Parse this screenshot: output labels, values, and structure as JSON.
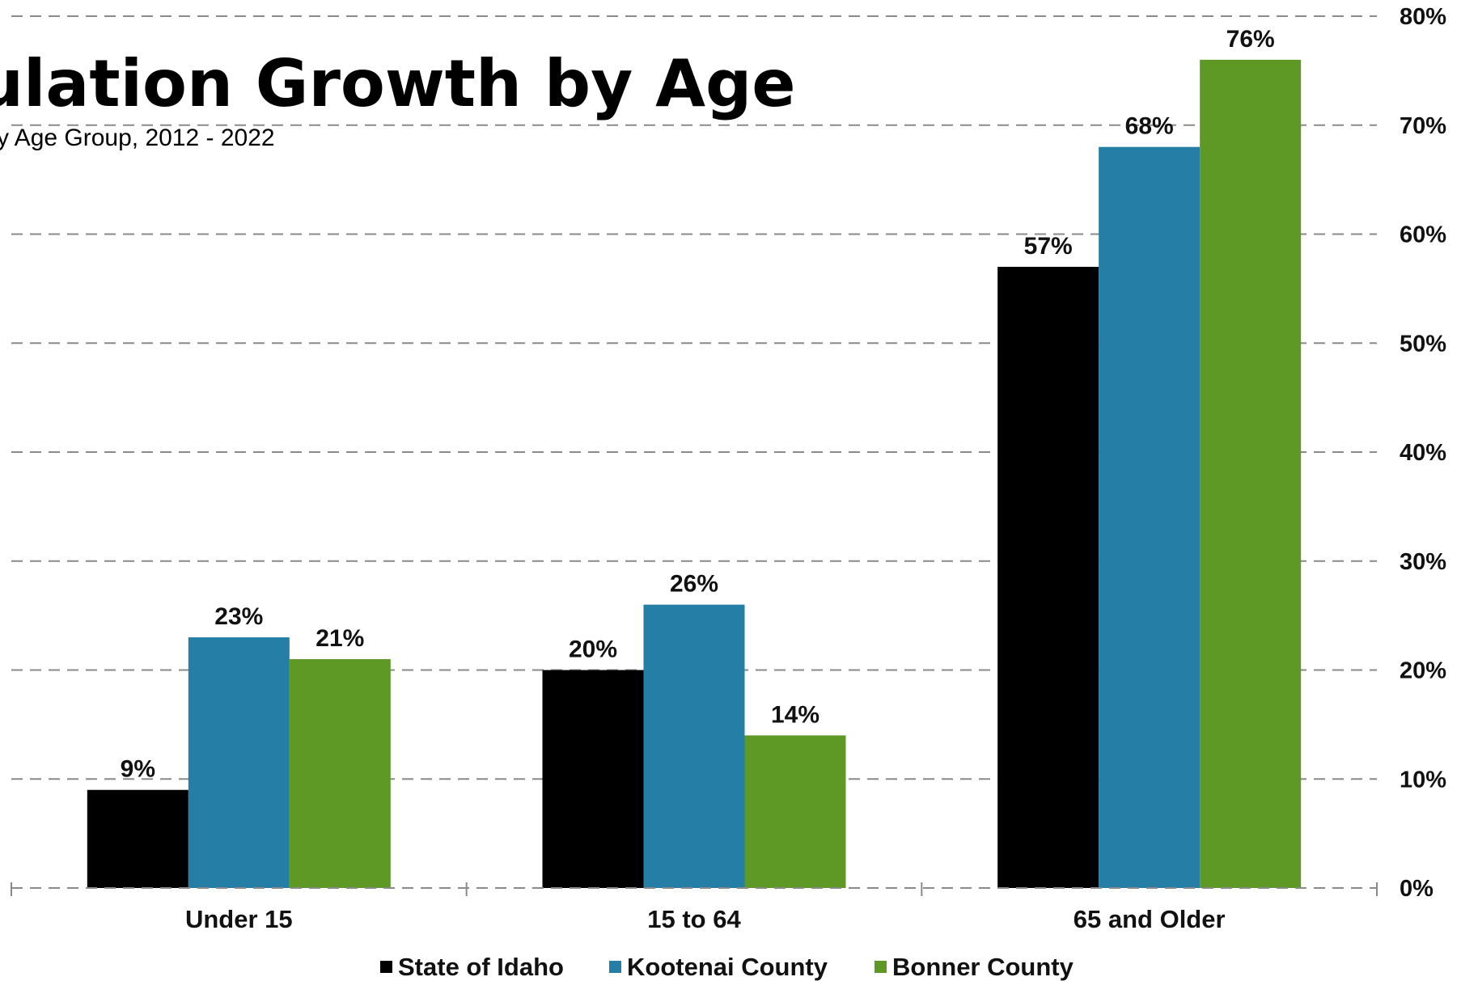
{
  "chart_data": {
    "type": "bar",
    "title": "ulation Growth by Age",
    "subtitle": "y Age Group, 2012 - 2022",
    "categories": [
      "Under 15",
      "15 to 64",
      "65 and Older"
    ],
    "series": [
      {
        "name": "State of Idaho",
        "color": "#000000",
        "values": [
          9,
          20,
          57
        ],
        "labels": [
          "9%",
          "20%",
          "57%"
        ]
      },
      {
        "name": "Kootenai County",
        "color": "#247ea6",
        "values": [
          23,
          26,
          68
        ],
        "labels": [
          "23%",
          "26%",
          "68%"
        ]
      },
      {
        "name": "Bonner County",
        "color": "#5e9926",
        "values": [
          21,
          14,
          76
        ],
        "labels": [
          "21%",
          "14%",
          "76%"
        ]
      }
    ],
    "y_axis": {
      "position": "right",
      "min": 0,
      "max": 80,
      "ticks": [
        0,
        10,
        20,
        30,
        40,
        50,
        60,
        70,
        80
      ],
      "tick_labels": [
        "0%",
        "10%",
        "20%",
        "30%",
        "40%",
        "50%",
        "60%",
        "70%",
        "80%"
      ]
    },
    "grid": true,
    "legend_placement": "bottom"
  }
}
